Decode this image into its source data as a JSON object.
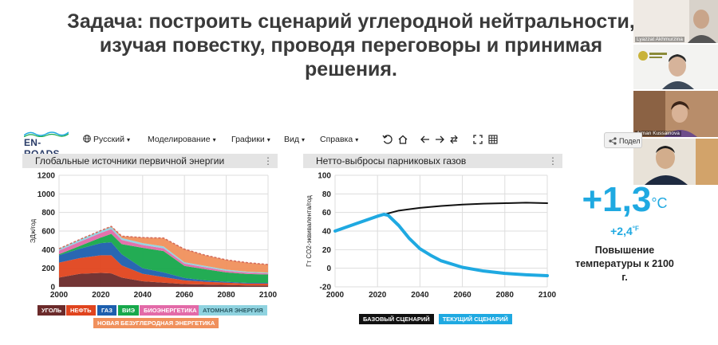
{
  "slide": {
    "title_lines": [
      "Задача: построить сценарий углеродной нейтральности,",
      "изучая повестку, проводя переговоры и принимая",
      "решения."
    ]
  },
  "app": {
    "logo": "EN-ROADS",
    "menu": {
      "language": "Русский",
      "modeling": "Моделирование",
      "graphs": "Графики",
      "view": "Вид",
      "help": "Справка"
    },
    "toolbar_icons": [
      "undo-icon",
      "home-icon",
      "back-arrow-icon",
      "forward-arrow-icon",
      "swap-icon",
      "fullscreen-icon",
      "grid-icon"
    ],
    "share_label": "Подел"
  },
  "left_panel": {
    "title": "Глобальные источники первичной энергии",
    "legend": [
      {
        "label": "УГОЛЬ",
        "color": "#6b2a2a"
      },
      {
        "label": "НЕФТЬ",
        "color": "#e0441e"
      },
      {
        "label": "ГАЗ",
        "color": "#1d5fae"
      },
      {
        "label": "ВИЭ",
        "color": "#17a84b"
      },
      {
        "label": "БИОЭНЕРГЕТИКА",
        "color": "#e36aa8"
      },
      {
        "label": "АТОМНАЯ ЭНЕРГИЯ",
        "color": "#8fd3e0"
      },
      {
        "label": "НОВАЯ БЕЗУГЛЕРОДНАЯ ЭНЕРГЕТИКА",
        "color": "#f0905c"
      }
    ]
  },
  "right_panel": {
    "title": "Нетто-выбросы парниковых газов",
    "legend": [
      {
        "label": "БАЗОВЫЙ СЦЕНАРИЙ",
        "color": "#111111"
      },
      {
        "label": "ТЕКУЩИЙ СЦЕНАРИЙ",
        "color": "#1fa9e1"
      }
    ]
  },
  "temperature": {
    "value_c": "+1,3",
    "unit_c": "°C",
    "value_f": "+2,4",
    "unit_f": "°F",
    "description": "Повышение температуры к 2100 г."
  },
  "participants": [
    {
      "name": "Lyazzat Akhmurzina"
    },
    {
      "name": ""
    },
    {
      "name": "Aiman Kussainova"
    },
    {
      "name": ""
    }
  ],
  "chart_data": [
    {
      "type": "area",
      "title": "Глобальные источники первичной энергии",
      "ylabel": "ЭДж/год",
      "xlim": [
        2000,
        2100
      ],
      "ylim": [
        0,
        1200
      ],
      "x_ticks": [
        2000,
        2020,
        2040,
        2060,
        2080,
        2100
      ],
      "y_ticks": [
        0,
        200,
        400,
        600,
        800,
        1000,
        1200
      ],
      "x": [
        2000,
        2010,
        2020,
        2025,
        2030,
        2040,
        2050,
        2060,
        2070,
        2080,
        2090,
        2100
      ],
      "stacked": true,
      "series": [
        {
          "name": "УГОЛЬ",
          "values": [
            100,
            140,
            150,
            145,
            100,
            60,
            45,
            30,
            25,
            20,
            15,
            15
          ]
        },
        {
          "name": "НЕФТЬ",
          "values": [
            160,
            170,
            190,
            195,
            130,
            80,
            60,
            40,
            30,
            25,
            20,
            20
          ]
        },
        {
          "name": "ГАЗ",
          "values": [
            80,
            100,
            130,
            140,
            120,
            60,
            50,
            25,
            15,
            10,
            8,
            8
          ]
        },
        {
          "name": "ВИЭ",
          "values": [
            10,
            30,
            60,
            90,
            110,
            220,
            230,
            130,
            120,
            100,
            95,
            90
          ]
        },
        {
          "name": "БИОЭНЕРГЕТИКА",
          "values": [
            40,
            45,
            50,
            50,
            45,
            30,
            30,
            25,
            20,
            18,
            15,
            12
          ]
        },
        {
          "name": "АТОМНАЯ ЭНЕРГИЯ",
          "values": [
            20,
            25,
            25,
            25,
            20,
            20,
            20,
            15,
            15,
            12,
            10,
            8
          ]
        },
        {
          "name": "НОВАЯ БЕЗУГЛЕРОДНАЯ ЭНЕРГЕТИКА",
          "values": [
            0,
            0,
            0,
            5,
            20,
            60,
            90,
            140,
            115,
            105,
            97,
            87
          ]
        }
      ]
    },
    {
      "type": "line",
      "title": "Нетто-выбросы парниковых газов",
      "ylabel": "Гт CO2-эквивалента/год",
      "xlim": [
        2000,
        2100
      ],
      "ylim": [
        -20,
        100
      ],
      "x_ticks": [
        2000,
        2020,
        2040,
        2060,
        2080,
        2100
      ],
      "y_ticks": [
        -20,
        0,
        20,
        40,
        60,
        80,
        100
      ],
      "series": [
        {
          "name": "БАЗОВЫЙ СЦЕНАРИЙ",
          "x": [
            2000,
            2010,
            2020,
            2025,
            2030,
            2040,
            2050,
            2060,
            2070,
            2080,
            2090,
            2100
          ],
          "values": [
            40,
            48,
            56,
            59,
            62,
            65,
            67,
            68.5,
            69.5,
            70,
            70.5,
            70
          ]
        },
        {
          "name": "ТЕКУЩИЙ СЦЕНАРИЙ",
          "x": [
            2000,
            2010,
            2020,
            2023,
            2025,
            2030,
            2035,
            2040,
            2045,
            2050,
            2060,
            2070,
            2080,
            2090,
            2100
          ],
          "values": [
            40,
            48,
            56,
            58,
            57,
            46,
            32,
            21,
            14,
            8,
            1,
            -3,
            -5.5,
            -7,
            -8
          ]
        }
      ]
    }
  ]
}
